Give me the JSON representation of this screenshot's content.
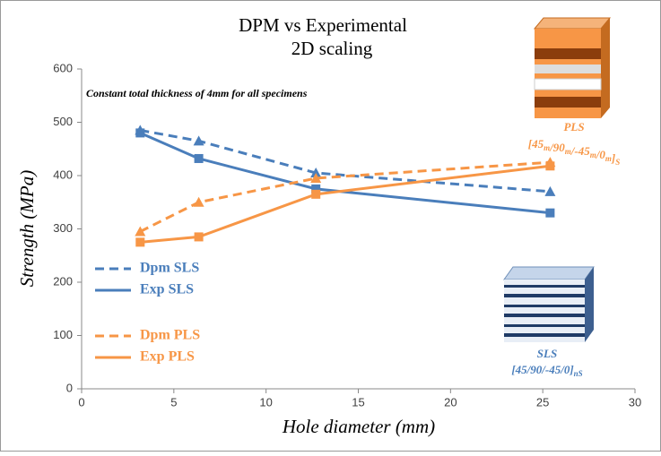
{
  "chart_data": {
    "type": "line",
    "title": [
      "DPM vs Experimental",
      "2D scaling"
    ],
    "x_label": "Hole diameter (mm)",
    "y_label": "Strength (MPa)",
    "annotation": "Constant total thickness of 4mm for all specimens",
    "pls_label": {
      "name": "PLS",
      "layup": [
        [
          "[45",
          "m"
        ],
        [
          "/90",
          "m"
        ],
        [
          "/-45",
          "m"
        ],
        [
          "/0",
          "m"
        ],
        [
          "]",
          "S"
        ]
      ]
    },
    "sls_label": {
      "name": "SLS",
      "layup": [
        [
          "[45/90/-45/0]",
          "nS"
        ]
      ]
    },
    "x": [
      3.175,
      6.35,
      12.7,
      25.4
    ],
    "series": [
      {
        "name": "Dpm SLS",
        "color": "#4a7ebb",
        "dash": true,
        "marker": "triangle",
        "values": [
          485,
          465,
          405,
          370
        ]
      },
      {
        "name": "Exp SLS",
        "color": "#4a7ebb",
        "dash": false,
        "marker": "square",
        "values": [
          480,
          432,
          375,
          330
        ]
      },
      {
        "name": "Dpm PLS",
        "color": "#f79646",
        "dash": true,
        "marker": "triangle",
        "values": [
          295,
          350,
          395,
          425
        ]
      },
      {
        "name": "Exp PLS",
        "color": "#f79646",
        "dash": false,
        "marker": "square",
        "values": [
          275,
          285,
          365,
          418
        ]
      }
    ],
    "xlim": [
      0,
      30
    ],
    "xticks": [
      0,
      5,
      10,
      15,
      20,
      25,
      30
    ],
    "ylim": [
      0,
      600
    ],
    "yticks": [
      0,
      100,
      200,
      300,
      400,
      500,
      600
    ],
    "grid": false
  }
}
